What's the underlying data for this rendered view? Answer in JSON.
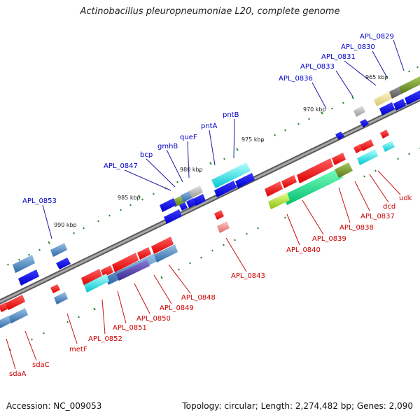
{
  "title": "Actinobacillus pleuropneumoniae L20, complete genome",
  "footer": {
    "accession": "Accession: NC_009053",
    "summary": "Topology: circular; Length: 2,274,482 bp; Genes: 2,090"
  },
  "scale_labels": [
    "965 kbp",
    "970 kbp",
    "975 kbp",
    "980 kbp",
    "985 kbp",
    "990 kbp"
  ],
  "colors": {
    "backbone": "#7a7a7a",
    "forward_label": "#0000cc",
    "reverse_label": "#cc0000",
    "cds_forward": "#0000ee",
    "cds_reverse": "#ee0000",
    "tick": "#2a8a2a"
  },
  "forward_labels": [
    "APL_0829",
    "APL_0830",
    "APL_0831",
    "APL_0833",
    "APL_0836",
    "pntB",
    "pntA",
    "queF",
    "gmhB",
    "bcp",
    "APL_0847",
    "APL_0853"
  ],
  "reverse_labels": [
    "udk",
    "dcd",
    "APL_0837",
    "APL_0838",
    "APL_0839",
    "APL_0840",
    "APL_0843",
    "APL_0848",
    "APL_0849",
    "APL_0850",
    "APL_0851",
    "APL_0852",
    "metF",
    "sdaC",
    "sdaA"
  ]
}
